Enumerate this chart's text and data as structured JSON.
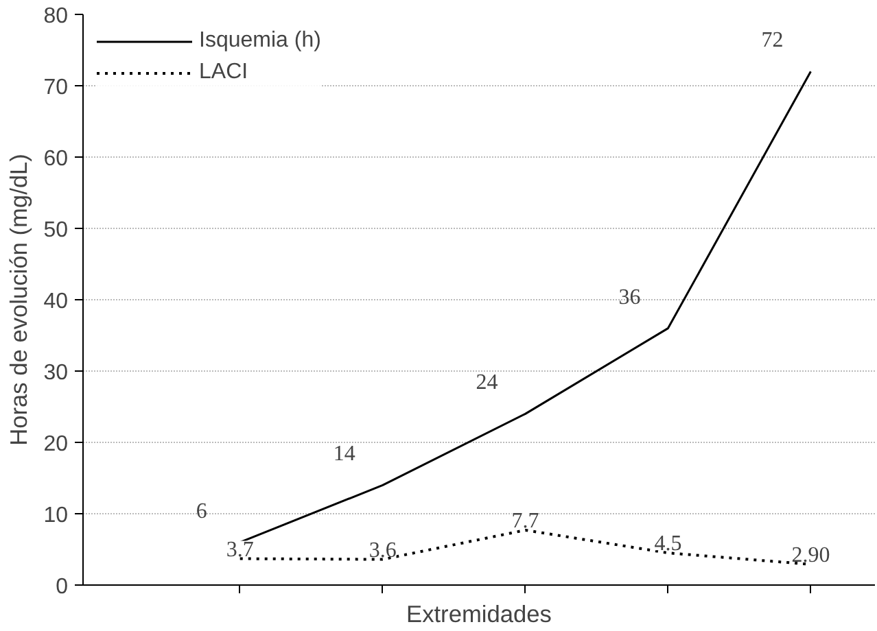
{
  "chart_data": {
    "type": "line",
    "xlabel": "Extremidades",
    "ylabel": "Horas de evolución (mg/dL)",
    "categories": [
      null,
      null,
      null,
      null,
      null
    ],
    "series": [
      {
        "name": "Isquemia (h)",
        "color": "#000000",
        "line_style": "solid",
        "values": [
          6,
          14,
          24,
          36,
          72
        ],
        "value_labels": [
          "6",
          "14",
          "24",
          "36",
          "72"
        ]
      },
      {
        "name": "LACI",
        "color": "#000000",
        "line_style": "dotted",
        "values": [
          3.7,
          3.6,
          7.7,
          4.5,
          2.9
        ],
        "value_labels": [
          "3.7",
          "3.6",
          "7.7",
          "4.5",
          "2.90"
        ]
      }
    ],
    "ylim": [
      0,
      80
    ],
    "yticks": [
      0,
      10,
      20,
      30,
      40,
      50,
      60,
      70,
      80
    ],
    "grid": "y",
    "legend": "top left",
    "marker": "none"
  }
}
